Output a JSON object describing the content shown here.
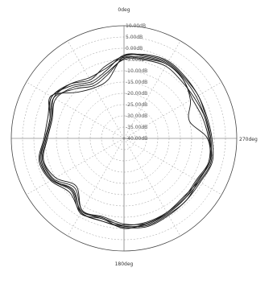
{
  "chart_data": {
    "type": "polar-line",
    "title": "",
    "angle_unit": "deg",
    "angle_direction": "counter-clockwise",
    "angle_zero": "top",
    "direction_labels": [
      {
        "angle": 0,
        "text": "0deg"
      },
      {
        "angle": 270,
        "text": "270deg"
      },
      {
        "angle": 180,
        "text": "180deg"
      }
    ],
    "radial_unit": "dB",
    "radial_range": [
      -40,
      10
    ],
    "ring_labels": [
      "10.00dB",
      "5.00dB",
      "0.00dB",
      "-5.00dB",
      "-10.00dB",
      "-15.00dB",
      "-20.00dB",
      "-25.00dB",
      "-30.00dB",
      "-35.00dB",
      "-40.00dB"
    ],
    "ring_values": [
      10,
      5,
      0,
      -5,
      -10,
      -15,
      -20,
      -25,
      -30,
      -35,
      -40
    ],
    "grid": true,
    "legend": "none",
    "colors": {
      "curves": "#1a1a1a",
      "grid_dashed": "#999999",
      "axis": "#555555",
      "outer_ring": "#444444"
    },
    "series": [
      {
        "angle": [
          0,
          15,
          30,
          45,
          60,
          75,
          90,
          105,
          120,
          135,
          150,
          165,
          180,
          195,
          210,
          225,
          240,
          255,
          270,
          285,
          300,
          315,
          330,
          345
        ],
        "db": [
          -3.5,
          -13,
          -14,
          -11,
          -2.5,
          -6,
          -5,
          -1.5,
          -3,
          -7,
          -1.5,
          -3,
          0,
          -1,
          -1.5,
          -2,
          -1.5,
          0,
          -2,
          -3,
          -3,
          -2.5,
          -1.5,
          -2.5
        ]
      },
      {
        "angle": [
          0,
          15,
          30,
          45,
          60,
          75,
          90,
          105,
          120,
          135,
          150,
          165,
          180,
          195,
          210,
          225,
          240,
          255,
          270,
          285,
          300,
          315,
          330,
          345
        ],
        "db": [
          -3,
          -9,
          -11,
          -7,
          -3,
          -6,
          -5,
          -2,
          -3,
          -8,
          -2,
          -2,
          -1,
          0,
          -1,
          -1,
          -2,
          -0.5,
          -1.5,
          -2.5,
          -2,
          -2,
          -1,
          -2
        ]
      },
      {
        "angle": [
          0,
          15,
          30,
          45,
          60,
          75,
          90,
          105,
          120,
          135,
          150,
          165,
          180,
          195,
          210,
          225,
          240,
          255,
          270,
          285,
          300,
          315,
          330,
          345
        ],
        "db": [
          -4,
          -8,
          -9,
          -6,
          -4,
          -7,
          -6,
          -3,
          -4,
          -9,
          -3,
          -3,
          -1.5,
          -1.5,
          -2,
          -2.5,
          -3,
          -1,
          -3,
          -10,
          -6,
          -3,
          -2,
          -3
        ]
      },
      {
        "angle": [
          0,
          15,
          30,
          45,
          60,
          75,
          90,
          105,
          120,
          135,
          150,
          165,
          180,
          195,
          210,
          225,
          240,
          255,
          270,
          285,
          300,
          315,
          330,
          345
        ],
        "db": [
          -5,
          -10,
          -12,
          -8,
          -5,
          -7,
          -6,
          -3,
          -5,
          -10,
          -3,
          -4,
          -2,
          -1,
          -2,
          -3,
          -2,
          -1,
          -2,
          -3,
          -4,
          -4,
          -3,
          -4
        ]
      },
      {
        "angle": [
          0,
          15,
          30,
          45,
          60,
          75,
          90,
          105,
          120,
          135,
          150,
          165,
          180,
          195,
          210,
          225,
          240,
          255,
          270,
          285,
          300,
          315,
          330,
          345
        ],
        "db": [
          -3.5,
          -7,
          -10,
          -6,
          -3,
          -5,
          -4.5,
          -1,
          -2.5,
          -6,
          -2,
          -2,
          -0.5,
          0.5,
          -0.5,
          -1,
          -1,
          0.5,
          -1,
          -2,
          -2,
          -1.5,
          -0.5,
          -1.5
        ]
      },
      {
        "angle": [
          0,
          15,
          30,
          45,
          60,
          75,
          90,
          105,
          120,
          135,
          150,
          165,
          180,
          195,
          210,
          225,
          240,
          255,
          270,
          285,
          300,
          315,
          330,
          345
        ],
        "db": [
          -4.5,
          -11,
          -13,
          -9,
          -4,
          -6.5,
          -5.5,
          -2.5,
          -3.5,
          -7.5,
          -2.5,
          -3.5,
          -1,
          -0.5,
          -1.5,
          -2,
          -2.5,
          -0.5,
          -2.5,
          -4,
          -5,
          -3,
          -2,
          -3.5
        ]
      }
    ]
  }
}
